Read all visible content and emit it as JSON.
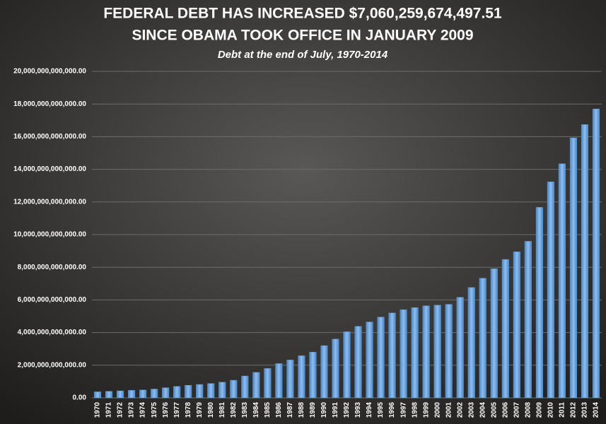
{
  "chart_data": {
    "type": "bar",
    "title": [
      "FEDERAL DEBT HAS INCREASED $7,060,259,674,497.51",
      "SINCE OBAMA TOOK OFFICE IN JANUARY 2009"
    ],
    "subtitle": "Debt at the end of July, 1970-2014",
    "categories": [
      "1970",
      "1971",
      "1972",
      "1973",
      "1974",
      "1975",
      "1976",
      "1977",
      "1978",
      "1979",
      "1980",
      "1981",
      "1982",
      "1983",
      "1984",
      "1985",
      "1986",
      "1987",
      "1988",
      "1989",
      "1990",
      "1991",
      "1992",
      "1993",
      "1994",
      "1995",
      "1996",
      "1997",
      "1998",
      "1999",
      "2000",
      "2001",
      "2002",
      "2003",
      "2004",
      "2005",
      "2006",
      "2007",
      "2008",
      "2009",
      "2010",
      "2011",
      "2012",
      "2013",
      "2014"
    ],
    "values": [
      370000000000,
      400000000000,
      430000000000,
      460000000000,
      480000000000,
      540000000000,
      620000000000,
      700000000000,
      770000000000,
      820000000000,
      880000000000,
      960000000000,
      1080000000000,
      1340000000000,
      1560000000000,
      1800000000000,
      2100000000000,
      2320000000000,
      2580000000000,
      2800000000000,
      3200000000000,
      3600000000000,
      4050000000000,
      4380000000000,
      4650000000000,
      4950000000000,
      5200000000000,
      5400000000000,
      5530000000000,
      5640000000000,
      5680000000000,
      5730000000000,
      6160000000000,
      6760000000000,
      7330000000000,
      7910000000000,
      8480000000000,
      8950000000000,
      9590000000000,
      11670000000000,
      13230000000000,
      14340000000000,
      15930000000000,
      16740000000000,
      17700000000000
    ],
    "color": "#5b9bd5",
    "ylim": [
      0,
      20000000000000
    ],
    "yticks": [
      {
        "value": 0,
        "label": "0.00"
      },
      {
        "value": 2000000000000,
        "label": "2,000,000,000,000.00"
      },
      {
        "value": 4000000000000,
        "label": "4,000,000,000,000.00"
      },
      {
        "value": 6000000000000,
        "label": "6,000,000,000,000.00"
      },
      {
        "value": 8000000000000,
        "label": "8,000,000,000,000.00"
      },
      {
        "value": 10000000000000,
        "label": "10,000,000,000,000.00"
      },
      {
        "value": 12000000000000,
        "label": "12,000,000,000,000.00"
      },
      {
        "value": 14000000000000,
        "label": "14,000,000,000,000.00"
      },
      {
        "value": 16000000000000,
        "label": "16,000,000,000,000.00"
      },
      {
        "value": 18000000000000,
        "label": "18,000,000,000,000.00"
      },
      {
        "value": 20000000000000,
        "label": "20,000,000,000,000.00"
      }
    ],
    "grid": true
  }
}
